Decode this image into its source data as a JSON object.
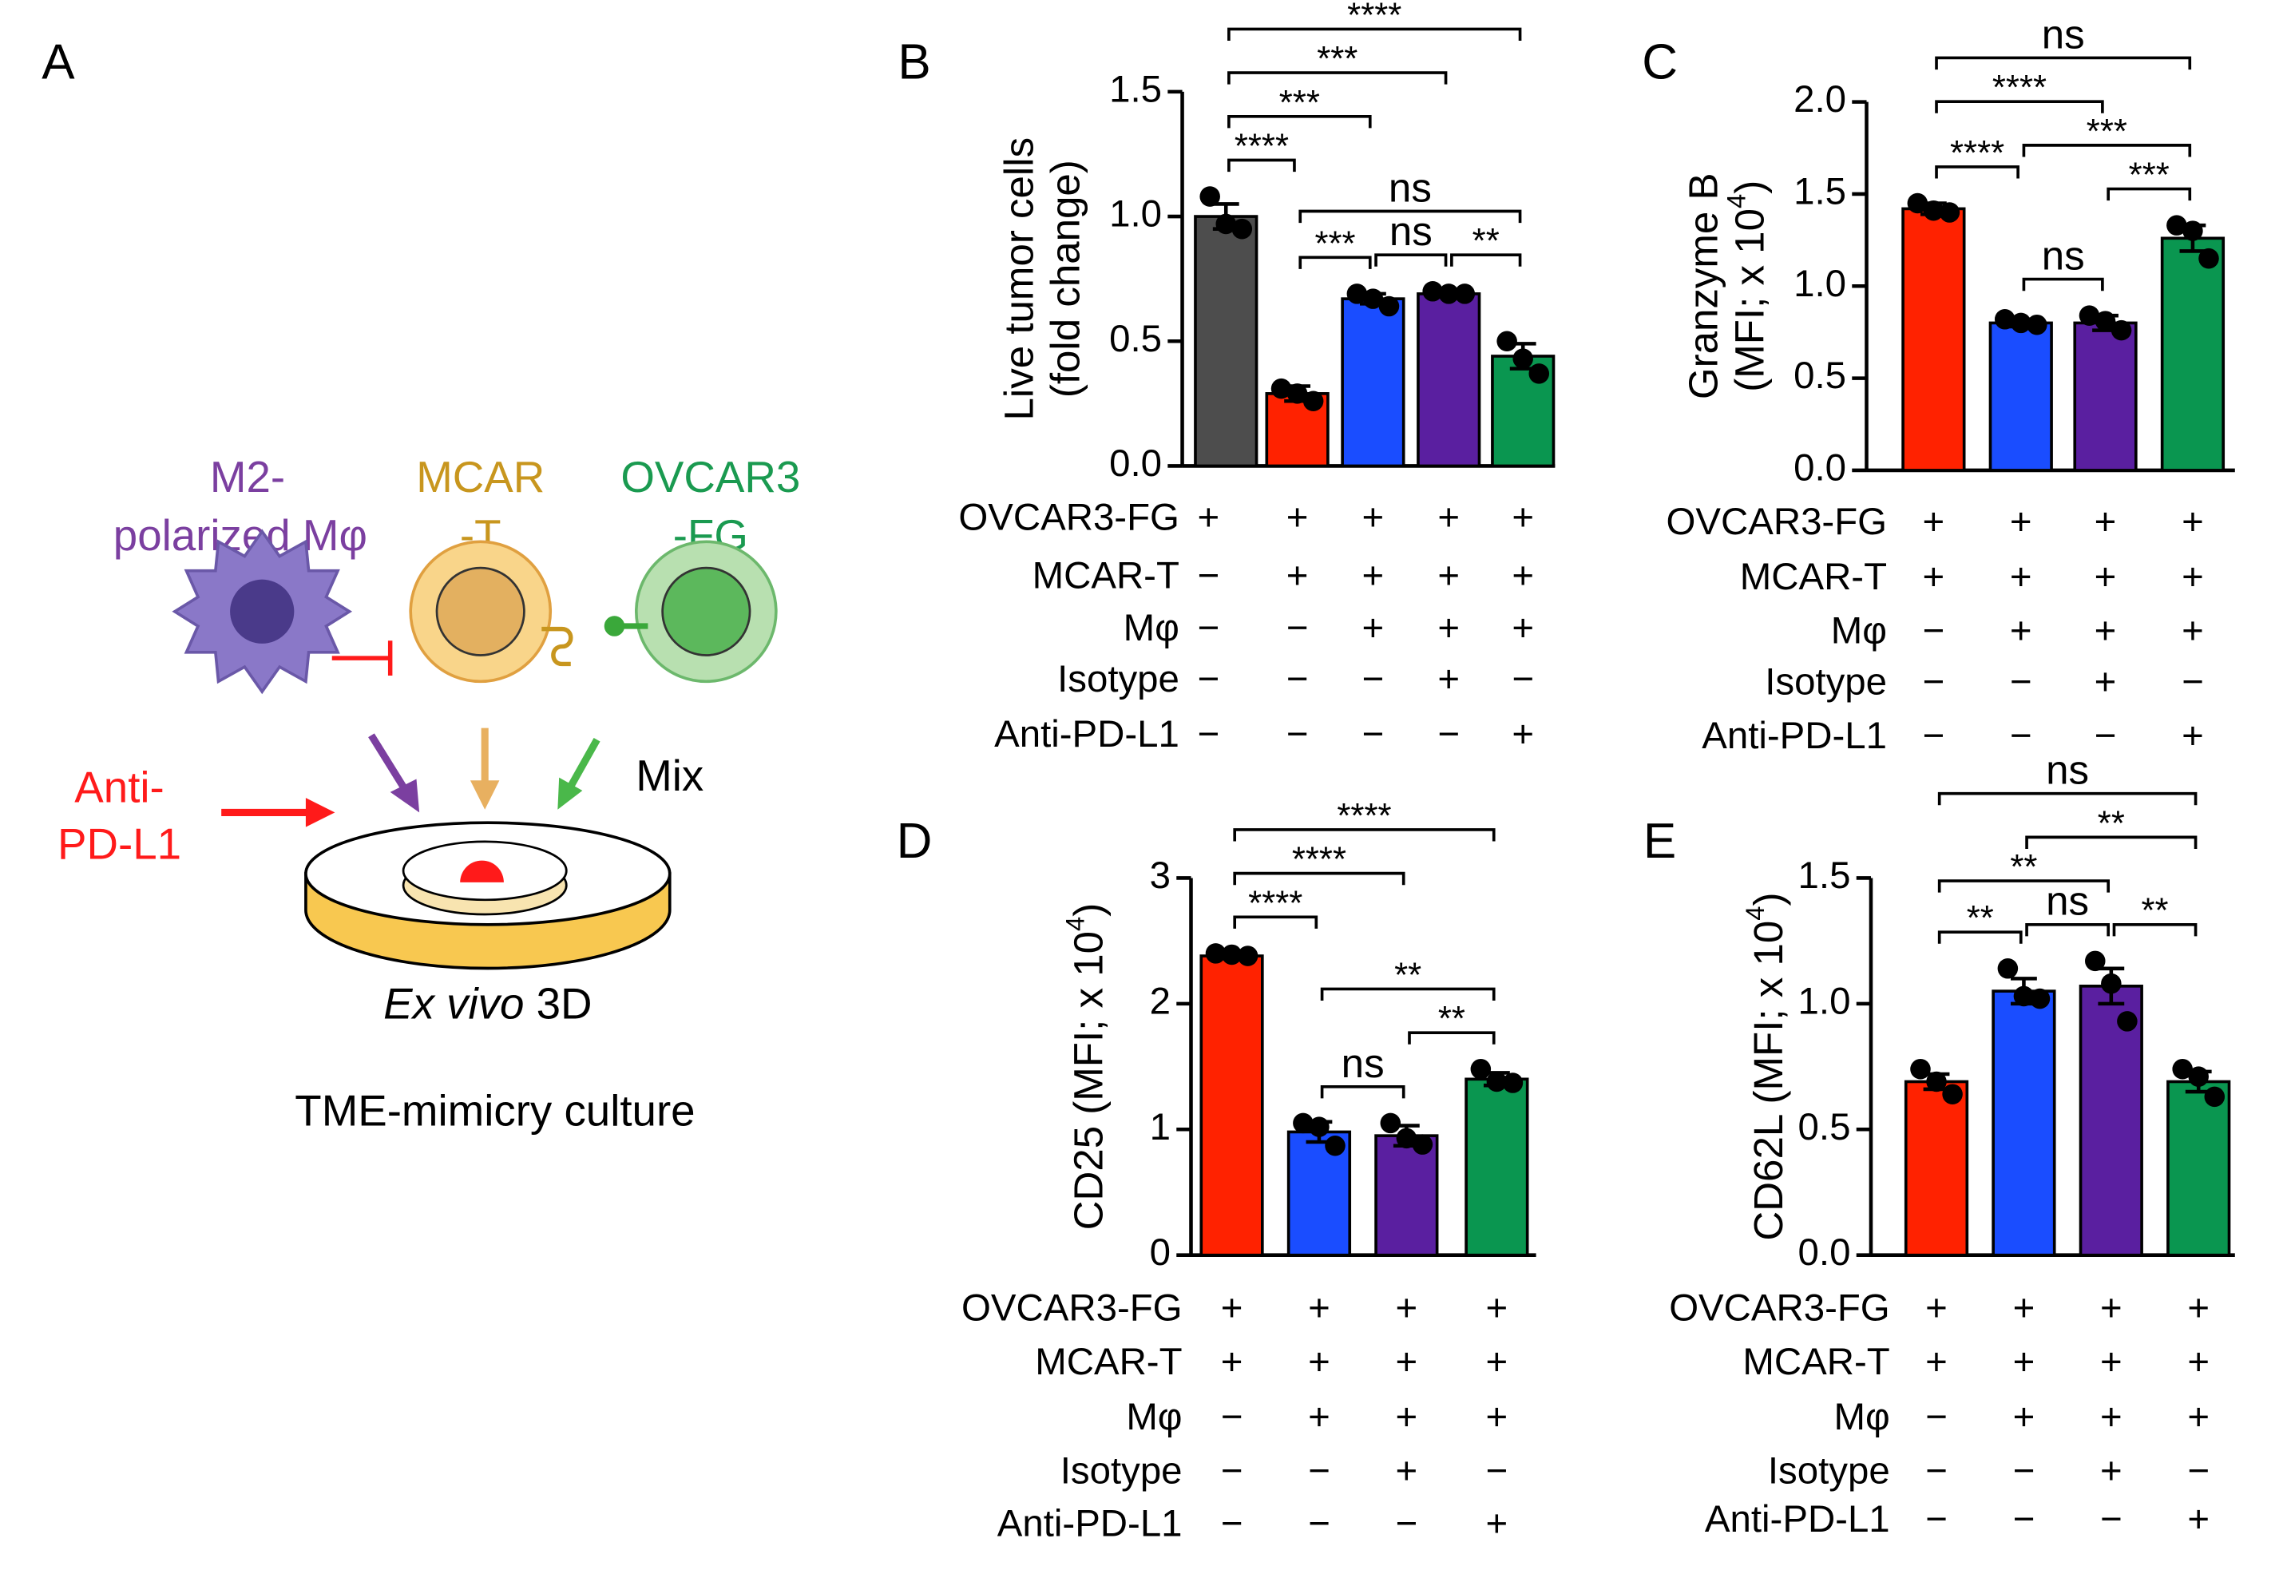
{
  "panel_a": {
    "label": "A",
    "macrophage": [
      "M2-",
      "polarized Mφ"
    ],
    "car_t": [
      "MCAR",
      "-T"
    ],
    "tumor": [
      "OVCAR3",
      "-FG"
    ],
    "antibody": [
      "Anti-",
      "PD-L1"
    ],
    "mix": "Mix",
    "culture_italic": "Ex vivo",
    "culture_rest": " 3D",
    "culture_line2": "TME-mimicry culture"
  },
  "chart_data": [
    {
      "type": "bar",
      "label": "B",
      "ylabel": {
        "line1": "Live tumor cells",
        "text": "(fold change)"
      },
      "ylim": [
        0,
        1.5
      ],
      "yticks": [
        {
          "value": 0,
          "label": "0.0"
        },
        {
          "value": 0.5,
          "label": "0.5"
        },
        {
          "value": 1,
          "label": "1.0"
        },
        {
          "value": 1.5,
          "label": "1.5"
        }
      ],
      "values": [
        1.0,
        0.29,
        0.67,
        0.69,
        0.44
      ],
      "errors": [
        0.05,
        0.03,
        0.02,
        0.01,
        0.05
      ],
      "points": [
        [
          1.08,
          0.97,
          0.95
        ],
        [
          0.31,
          0.29,
          0.26
        ],
        [
          0.69,
          0.67,
          0.64
        ],
        [
          0.7,
          0.69,
          0.69
        ],
        [
          0.5,
          0.43,
          0.37
        ]
      ],
      "colors": [
        "#4d4d4d",
        "#ff2200",
        "#1a4dff",
        "#5a1fa0",
        "#0a9650"
      ],
      "conditions": [
        {
          "name": "OVCAR3-FG",
          "marks": [
            "+",
            "+",
            "+",
            "+",
            "+"
          ]
        },
        {
          "name": "MCAR-T",
          "marks": [
            "−",
            "+",
            "+",
            "+",
            "+"
          ]
        },
        {
          "name": "Mφ",
          "marks": [
            "−",
            "−",
            "+",
            "+",
            "+"
          ]
        },
        {
          "name": "Isotype",
          "marks": [
            "−",
            "−",
            "−",
            "+",
            "−"
          ]
        },
        {
          "name": "Anti-PD-L1",
          "marks": [
            "−",
            "−",
            "−",
            "−",
            "+"
          ]
        }
      ],
      "comparisons": [
        {
          "groups": [
            1,
            2
          ],
          "label": "***"
        },
        {
          "groups": [
            2,
            3
          ],
          "label": "ns"
        },
        {
          "groups": [
            3,
            4
          ],
          "label": "**"
        },
        {
          "groups": [
            1,
            4
          ],
          "label": "ns"
        },
        {
          "groups": [
            0,
            1
          ],
          "label": "****"
        },
        {
          "groups": [
            0,
            2
          ],
          "label": "***"
        },
        {
          "groups": [
            0,
            3
          ],
          "label": "***"
        },
        {
          "groups": [
            0,
            4
          ],
          "label": "****"
        }
      ]
    },
    {
      "type": "bar",
      "label": "C",
      "ylabel": {
        "line1": "Granzyme B",
        "text": "(MFI; x 10",
        "exponent": "4",
        "close": ")"
      },
      "ylim": [
        0,
        2
      ],
      "yticks": [
        {
          "value": 0,
          "label": "0.0"
        },
        {
          "value": 0.5,
          "label": "0.5"
        },
        {
          "value": 1,
          "label": "1.0"
        },
        {
          "value": 1.5,
          "label": "1.5"
        },
        {
          "value": 2,
          "label": "2.0"
        }
      ],
      "values": [
        1.42,
        0.8,
        0.8,
        1.26
      ],
      "errors": [
        0.03,
        0.02,
        0.04,
        0.07
      ],
      "points": [
        [
          1.45,
          1.41,
          1.4
        ],
        [
          0.82,
          0.8,
          0.79
        ],
        [
          0.84,
          0.81,
          0.76
        ],
        [
          1.33,
          1.3,
          1.15
        ]
      ],
      "colors": [
        "#ff2200",
        "#1a4dff",
        "#5a1fa0",
        "#0a9650"
      ],
      "conditions": [
        {
          "name": "OVCAR3-FG",
          "marks": [
            "+",
            "+",
            "+",
            "+"
          ]
        },
        {
          "name": "MCAR-T",
          "marks": [
            "+",
            "+",
            "+",
            "+"
          ]
        },
        {
          "name": "Mφ",
          "marks": [
            "−",
            "+",
            "+",
            "+"
          ]
        },
        {
          "name": "Isotype",
          "marks": [
            "−",
            "−",
            "+",
            "−"
          ]
        },
        {
          "name": "Anti-PD-L1",
          "marks": [
            "−",
            "−",
            "−",
            "+"
          ]
        }
      ],
      "comparisons": [
        {
          "groups": [
            1,
            2
          ],
          "label": "ns"
        },
        {
          "groups": [
            2,
            3
          ],
          "label": "***"
        },
        {
          "groups": [
            0,
            1
          ],
          "label": "****"
        },
        {
          "groups": [
            1,
            3
          ],
          "label": "***"
        },
        {
          "groups": [
            0,
            2
          ],
          "label": "****"
        },
        {
          "groups": [
            0,
            3
          ],
          "label": "ns"
        }
      ]
    },
    {
      "type": "bar",
      "label": "D",
      "ylabel": {
        "text": "CD25 (MFI; x 10",
        "exponent": "4",
        "close": ")"
      },
      "ylim": [
        0,
        3
      ],
      "yticks": [
        0,
        1,
        2,
        3
      ],
      "values": [
        2.38,
        0.98,
        0.95,
        1.4
      ],
      "errors": [
        0.02,
        0.08,
        0.08,
        0.05
      ],
      "points": [
        [
          2.4,
          2.39,
          2.38
        ],
        [
          1.05,
          1.02,
          0.87
        ],
        [
          1.05,
          0.93,
          0.88
        ],
        [
          1.48,
          1.38,
          1.37
        ]
      ],
      "colors": [
        "#ff2200",
        "#1a4dff",
        "#5a1fa0",
        "#0a9650"
      ],
      "conditions": [
        {
          "name": "OVCAR3-FG",
          "marks": [
            "+",
            "+",
            "+",
            "+"
          ]
        },
        {
          "name": "MCAR-T",
          "marks": [
            "+",
            "+",
            "+",
            "+"
          ]
        },
        {
          "name": "Mφ",
          "marks": [
            "−",
            "+",
            "+",
            "+"
          ]
        },
        {
          "name": "Isotype",
          "marks": [
            "−",
            "−",
            "+",
            "−"
          ]
        },
        {
          "name": "Anti-PD-L1",
          "marks": [
            "−",
            "−",
            "−",
            "+"
          ]
        }
      ],
      "comparisons": [
        {
          "groups": [
            1,
            2
          ],
          "label": "ns"
        },
        {
          "groups": [
            2,
            3
          ],
          "label": "**"
        },
        {
          "groups": [
            1,
            3
          ],
          "label": "**"
        },
        {
          "groups": [
            0,
            1
          ],
          "label": "****"
        },
        {
          "groups": [
            0,
            2
          ],
          "label": "****"
        },
        {
          "groups": [
            0,
            3
          ],
          "label": "****"
        }
      ]
    },
    {
      "type": "bar",
      "label": "E",
      "ylabel": {
        "text": "CD62L (MFI; x 10",
        "exponent": "4",
        "close": ")"
      },
      "ylim": [
        0,
        1.5
      ],
      "yticks": [
        {
          "value": 0,
          "label": "0.0"
        },
        {
          "value": 0.5,
          "label": "0.5"
        },
        {
          "value": 1,
          "label": "1.0"
        },
        {
          "value": 1.5,
          "label": "1.5"
        }
      ],
      "values": [
        0.69,
        1.05,
        1.07,
        0.69
      ],
      "errors": [
        0.03,
        0.05,
        0.07,
        0.04
      ],
      "points": [
        [
          0.74,
          0.69,
          0.64
        ],
        [
          1.14,
          1.03,
          1.02
        ],
        [
          1.17,
          1.08,
          0.93
        ],
        [
          0.74,
          0.71,
          0.63
        ]
      ],
      "colors": [
        "#ff2200",
        "#1a4dff",
        "#5a1fa0",
        "#0a9650"
      ],
      "conditions": [
        {
          "name": "OVCAR3-FG",
          "marks": [
            "+",
            "+",
            "+",
            "+"
          ]
        },
        {
          "name": "MCAR-T",
          "marks": [
            "+",
            "+",
            "+",
            "+"
          ]
        },
        {
          "name": "Mφ",
          "marks": [
            "−",
            "+",
            "+",
            "+"
          ]
        },
        {
          "name": "Isotype",
          "marks": [
            "−",
            "−",
            "+",
            "−"
          ]
        },
        {
          "name": "Anti-PD-L1",
          "marks": [
            "−",
            "−",
            "−",
            "+"
          ]
        }
      ],
      "comparisons": [
        {
          "groups": [
            0,
            1
          ],
          "label": "**"
        },
        {
          "groups": [
            1,
            2
          ],
          "label": "ns"
        },
        {
          "groups": [
            2,
            3
          ],
          "label": "**"
        },
        {
          "groups": [
            0,
            2
          ],
          "label": "**"
        },
        {
          "groups": [
            1,
            3
          ],
          "label": "**"
        },
        {
          "groups": [
            0,
            3
          ],
          "label": "ns"
        }
      ]
    }
  ]
}
